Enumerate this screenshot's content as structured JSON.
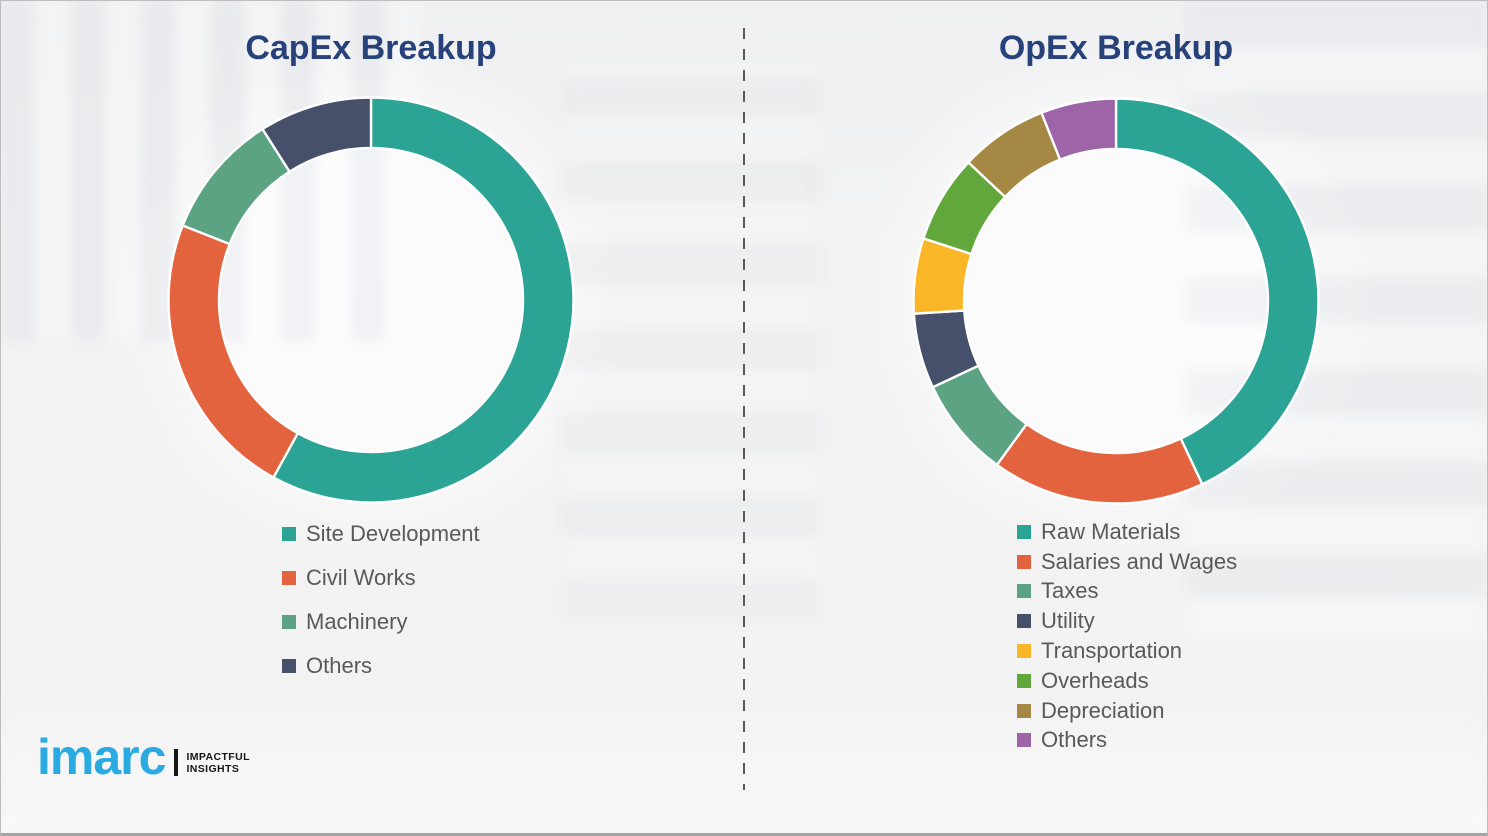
{
  "page": {
    "background_color": "#f2f2f3",
    "divider_style": "vertical-dashed",
    "divider_color": "#58585a",
    "title_color": "#27417B",
    "legend_text_color": "#595959"
  },
  "chart_data": [
    {
      "type": "pie",
      "subtype": "donut",
      "title": "CapEx Breakup",
      "labels": [
        "Site Development",
        "Civil Works",
        "Machinery",
        "Others"
      ],
      "values": [
        58,
        23,
        10,
        9
      ],
      "unit": "percent-estimated",
      "colors": [
        "#2BA496",
        "#E2633E",
        "#5BA382",
        "#47506B"
      ],
      "start_angle_deg": 0,
      "direction": "clockwise",
      "slice_gap_color": "#FFFFFF",
      "legend_position": "below-chart-left",
      "data_labels": false
    },
    {
      "type": "pie",
      "subtype": "donut",
      "title": "OpEx Breakup",
      "labels": [
        "Raw Materials",
        "Salaries and Wages",
        "Taxes",
        "Utility",
        "Transportation",
        "Overheads",
        "Depreciation",
        "Others"
      ],
      "values": [
        43,
        17,
        8,
        6,
        6,
        7,
        7,
        6
      ],
      "unit": "percent-estimated",
      "colors": [
        "#2BA496",
        "#E2633E",
        "#5BA382",
        "#47506B",
        "#F9B728",
        "#62A73C",
        "#A58843",
        "#9D64A8"
      ],
      "start_angle_deg": 0,
      "direction": "clockwise",
      "slice_gap_color": "#FFFFFF",
      "legend_position": "below-chart-left",
      "data_labels": false
    }
  ],
  "branding": {
    "logo_text": "imarc",
    "tagline_line1": "IMPACTFUL",
    "tagline_line2": "INSIGHTS",
    "logo_color": "#29ABE2"
  }
}
